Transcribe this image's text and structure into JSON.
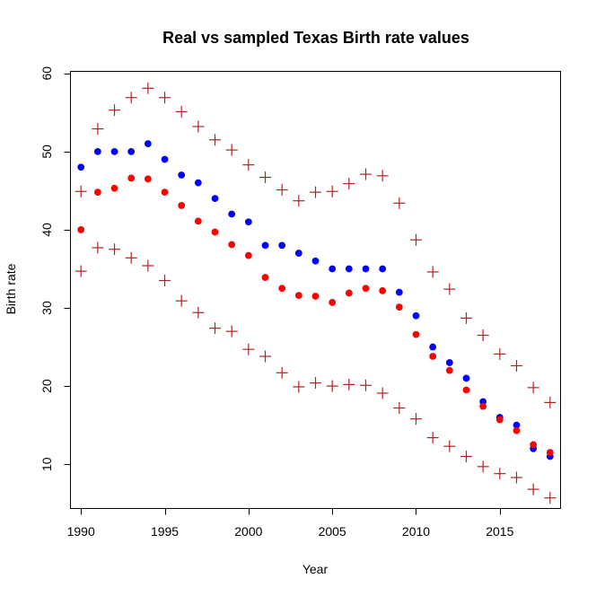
{
  "chart_data": {
    "type": "scatter",
    "title": "Real vs sampled Texas Birth rate values",
    "xlabel": "Year",
    "ylabel": "Birth rate",
    "xlim": [
      1989.4,
      2018.6
    ],
    "ylim": [
      4.4,
      60.2
    ],
    "xticks": [
      1990,
      1995,
      2000,
      2005,
      2010,
      2015
    ],
    "yticks": [
      10,
      20,
      30,
      40,
      50,
      60
    ],
    "grid": false,
    "legend": "none",
    "x": [
      1990,
      1991,
      1992,
      1993,
      1994,
      1995,
      1996,
      1997,
      1998,
      1999,
      2000,
      2001,
      2002,
      2003,
      2004,
      2005,
      2006,
      2007,
      2008,
      2009,
      2010,
      2011,
      2012,
      2013,
      2014,
      2015,
      2016,
      2017,
      2018
    ],
    "series": [
      {
        "marker": "circle",
        "color": "#0000ff",
        "values": [
          48,
          50,
          50,
          50,
          51,
          49,
          47,
          46,
          44,
          42,
          41,
          38,
          38,
          37,
          36,
          35,
          35,
          35,
          35,
          32,
          29,
          25,
          23,
          21,
          18,
          16,
          15,
          12,
          11
        ]
      },
      {
        "marker": "circle",
        "color": "#ff0000",
        "values": [
          40,
          44.8,
          45.3,
          46.6,
          46.5,
          44.8,
          43.1,
          41.1,
          39.7,
          38.1,
          36.7,
          33.9,
          32.5,
          31.6,
          31.5,
          30.7,
          31.9,
          32.5,
          32.2,
          30.1,
          26.6,
          23.8,
          22,
          19.5,
          17.4,
          15.7,
          14.3,
          12.5,
          11.5
        ]
      },
      {
        "marker": "plus",
        "color": "#b22222",
        "values": [
          44.9,
          52.9,
          55.3,
          56.9,
          58.1,
          56.9,
          55.1,
          53.2,
          51.5,
          50.2,
          48.3,
          46.7,
          45.1,
          43.7,
          44.8,
          44.9,
          45.9,
          47.1,
          46.9,
          43.4,
          38.7,
          34.6,
          32.4,
          28.7,
          26.5,
          24.1,
          22.6,
          19.8,
          17.9
        ]
      },
      {
        "marker": "plus",
        "color": "#b22222",
        "values": [
          34.7,
          37.7,
          37.5,
          36.4,
          35.4,
          33.5,
          30.9,
          29.4,
          27.4,
          27.0,
          24.7,
          23.8,
          21.7,
          19.9,
          20.4,
          20.0,
          20.2,
          20.1,
          19.1,
          17.2,
          15.8,
          13.4,
          12.3,
          11.0,
          9.7,
          8.8,
          8.3,
          6.8,
          5.7
        ]
      }
    ]
  }
}
